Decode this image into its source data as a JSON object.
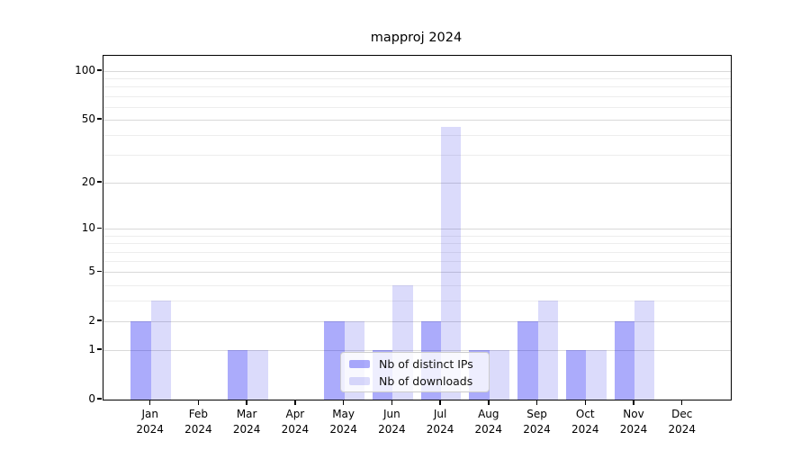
{
  "title": "mapproj 2024",
  "chart_data": {
    "type": "bar",
    "title": "mapproj 2024",
    "categories": [
      "Jan",
      "Feb",
      "Mar",
      "Apr",
      "May",
      "Jun",
      "Jul",
      "Aug",
      "Sep",
      "Oct",
      "Nov",
      "Dec"
    ],
    "year_label": "2024",
    "series": [
      {
        "name": "Nb of distinct IPs",
        "color": "#aaaafa",
        "fill": "#0000f354",
        "values": [
          2,
          0,
          1,
          0,
          2,
          1,
          2,
          1,
          2,
          1,
          2,
          0
        ]
      },
      {
        "name": "Nb of downloads",
        "color": "#dcdcfa",
        "fill": "#0000e624",
        "values": [
          3,
          0,
          1,
          0,
          2,
          4,
          45,
          1,
          3,
          1,
          3,
          0
        ]
      }
    ],
    "y_scale": "log1p",
    "y_ticks": [
      0,
      1,
      2,
      5,
      10,
      20,
      50,
      100
    ],
    "y_minor_gridlines": [
      3,
      4,
      6,
      7,
      8,
      9,
      30,
      40,
      60,
      70,
      80,
      90
    ],
    "ylim": [
      0,
      125
    ],
    "xlabel": "",
    "ylabel": "",
    "grid": true,
    "legend": {
      "position": "lower center",
      "entries": [
        "Nb of distinct IPs",
        "Nb of downloads"
      ]
    }
  },
  "colors": {
    "major_grid": "#d9d9d9",
    "minor_grid": "#ededed",
    "spine": "#000000",
    "legend_border": "#cccccc"
  }
}
